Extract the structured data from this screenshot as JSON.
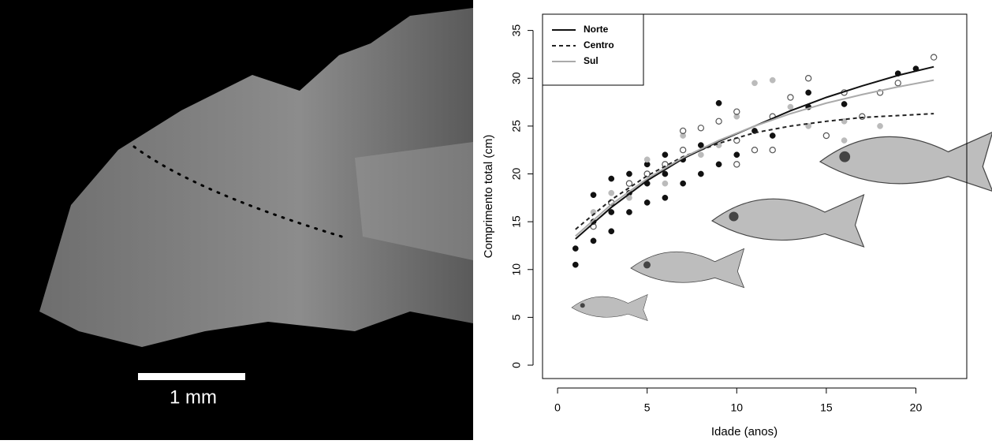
{
  "scale_bar": "1 mm",
  "chart_data": {
    "type": "scatter",
    "x_label": "Idade (anos)",
    "y_label": "Comprimento total (cm)",
    "xlim": [
      -0.84,
      22.84
    ],
    "ylim": [
      -1.4,
      36.7
    ],
    "xticks": [
      0,
      5,
      10,
      15,
      20
    ],
    "yticks": [
      0,
      5,
      10,
      15,
      20,
      25,
      30,
      35
    ],
    "legend": "top-left",
    "series": [
      {
        "name": "Norte",
        "color": "#111111",
        "dash": "solid",
        "x": [
          1,
          3,
          5,
          7,
          9,
          11,
          13,
          15,
          17,
          19,
          21
        ],
        "values": [
          13.2,
          16.5,
          19.3,
          21.6,
          23.4,
          25,
          26.6,
          28,
          29.2,
          30.3,
          31.2
        ]
      },
      {
        "name": "Centro",
        "color": "#222222",
        "dash": "dotted",
        "x": [
          1,
          3,
          5,
          7,
          9,
          11,
          13,
          15,
          17,
          19,
          21
        ],
        "values": [
          14.2,
          17.3,
          19.8,
          21.8,
          23.2,
          24.3,
          25,
          25.5,
          25.9,
          26.1,
          26.3
        ]
      },
      {
        "name": "Sul",
        "color": "#aaaaaa",
        "dash": "solid",
        "x": [
          1,
          3,
          5,
          7,
          9,
          11,
          13,
          15,
          17,
          19,
          21
        ],
        "values": [
          13.5,
          16.8,
          19.5,
          21.7,
          23.5,
          25,
          26.3,
          27.4,
          28.3,
          29.1,
          29.8
        ]
      }
    ],
    "points": [
      {
        "color": "#111111",
        "marker": "filled",
        "x": [
          1,
          1,
          2,
          2,
          2,
          3,
          3,
          3,
          4,
          4,
          4,
          5,
          5,
          5,
          6,
          6,
          6,
          7,
          7,
          8,
          8,
          9,
          9,
          10,
          11,
          12,
          14,
          14,
          16,
          19,
          20
        ],
        "values": [
          12.2,
          10.5,
          13,
          15,
          17.8,
          14,
          16,
          19.5,
          16,
          18,
          20,
          17,
          19,
          21,
          17.5,
          20,
          22,
          19,
          21.5,
          20,
          23,
          21,
          27.4,
          22,
          24.5,
          24,
          28.5,
          27,
          27.3,
          30.5,
          31
        ]
      },
      {
        "color": "#bbbbbb",
        "marker": "filled",
        "x": [
          2,
          3,
          4,
          5,
          6,
          7,
          8,
          9,
          10,
          11,
          12,
          13,
          14,
          16,
          16,
          18
        ],
        "values": [
          16,
          18,
          17.5,
          21.5,
          19,
          24,
          22,
          23,
          26,
          29.5,
          29.8,
          27,
          25,
          25.5,
          23.5,
          25
        ]
      },
      {
        "color": "#555555",
        "marker": "open",
        "x": [
          2,
          3,
          4,
          5,
          6,
          7,
          7,
          8,
          9,
          10,
          10,
          10,
          11,
          12,
          12,
          13,
          14,
          15,
          16,
          17,
          18,
          19,
          21
        ],
        "values": [
          14.5,
          17,
          19,
          20,
          21,
          22.5,
          24.5,
          24.8,
          25.5,
          23.5,
          26.5,
          21,
          22.5,
          26,
          22.5,
          28,
          30,
          24,
          28.5,
          26,
          28.5,
          29.5,
          32.2
        ]
      }
    ]
  }
}
